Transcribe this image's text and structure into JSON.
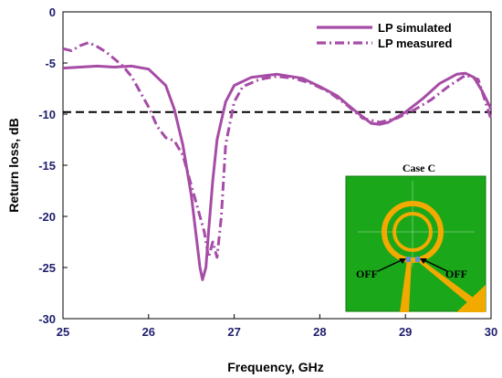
{
  "chart_data": {
    "type": "line",
    "title": "",
    "xlabel": "Frequency, GHz",
    "ylabel": "Return loss, dB",
    "xlim": [
      25,
      30
    ],
    "ylim": [
      -30,
      0
    ],
    "xticks": [
      "25",
      "26",
      "27",
      "28",
      "29",
      "30"
    ],
    "yticks": [
      "0",
      "-5",
      "-10",
      "-15",
      "-20",
      "-25",
      "-30"
    ],
    "legend_position": "top-right",
    "series": [
      {
        "name": "LP simulated",
        "style": "solid",
        "color": "#a64ca6",
        "x": [
          25.0,
          25.2,
          25.4,
          25.6,
          25.8,
          26.0,
          26.2,
          26.3,
          26.4,
          26.5,
          26.55,
          26.6,
          26.63,
          26.67,
          26.7,
          26.75,
          26.8,
          26.9,
          27.0,
          27.2,
          27.5,
          27.8,
          28.0,
          28.2,
          28.4,
          28.6,
          28.7,
          28.8,
          29.0,
          29.2,
          29.4,
          29.6,
          29.7,
          29.8,
          29.9,
          30.0
        ],
        "y": [
          -5.5,
          -5.4,
          -5.3,
          -5.4,
          -5.3,
          -5.6,
          -7.2,
          -9.5,
          -13.0,
          -18.0,
          -21.5,
          -25.0,
          -26.2,
          -25.0,
          -21.5,
          -16.5,
          -12.5,
          -8.8,
          -7.2,
          -6.4,
          -6.1,
          -6.5,
          -7.3,
          -8.2,
          -9.6,
          -10.9,
          -11.0,
          -10.8,
          -9.8,
          -8.5,
          -7.0,
          -6.1,
          -6.0,
          -6.4,
          -7.8,
          -9.5
        ]
      },
      {
        "name": "LP measured",
        "style": "dashdot",
        "color": "#a64ca6",
        "x": [
          25.0,
          25.1,
          25.2,
          25.3,
          25.4,
          25.5,
          25.6,
          25.7,
          25.8,
          25.9,
          26.0,
          26.1,
          26.2,
          26.3,
          26.4,
          26.5,
          26.6,
          26.65,
          26.7,
          26.75,
          26.8,
          26.85,
          26.9,
          27.0,
          27.1,
          27.3,
          27.5,
          27.7,
          27.9,
          28.1,
          28.3,
          28.5,
          28.7,
          28.9,
          29.1,
          29.3,
          29.5,
          29.7,
          29.85,
          30.0
        ],
        "y": [
          -3.6,
          -3.8,
          -3.3,
          -3.0,
          -3.4,
          -3.9,
          -4.6,
          -5.3,
          -6.3,
          -7.8,
          -9.3,
          -11.2,
          -12.3,
          -12.6,
          -14.0,
          -17.0,
          -20.0,
          -21.5,
          -24.0,
          -22.5,
          -24.0,
          -20.0,
          -13.0,
          -8.8,
          -7.3,
          -6.6,
          -6.3,
          -6.5,
          -7.0,
          -7.8,
          -9.0,
          -10.4,
          -10.8,
          -10.4,
          -9.6,
          -8.6,
          -7.3,
          -6.2,
          -6.6,
          -10.5
        ]
      }
    ],
    "reference_line": {
      "y": -9.8,
      "style": "dashed",
      "color": "#000000"
    },
    "inset": {
      "title": "Case C",
      "labels": [
        "OFF",
        "OFF"
      ],
      "background_color": "#1aa71a",
      "trace_color": "#f2a900",
      "switch_color": "#5b8fd6"
    }
  }
}
